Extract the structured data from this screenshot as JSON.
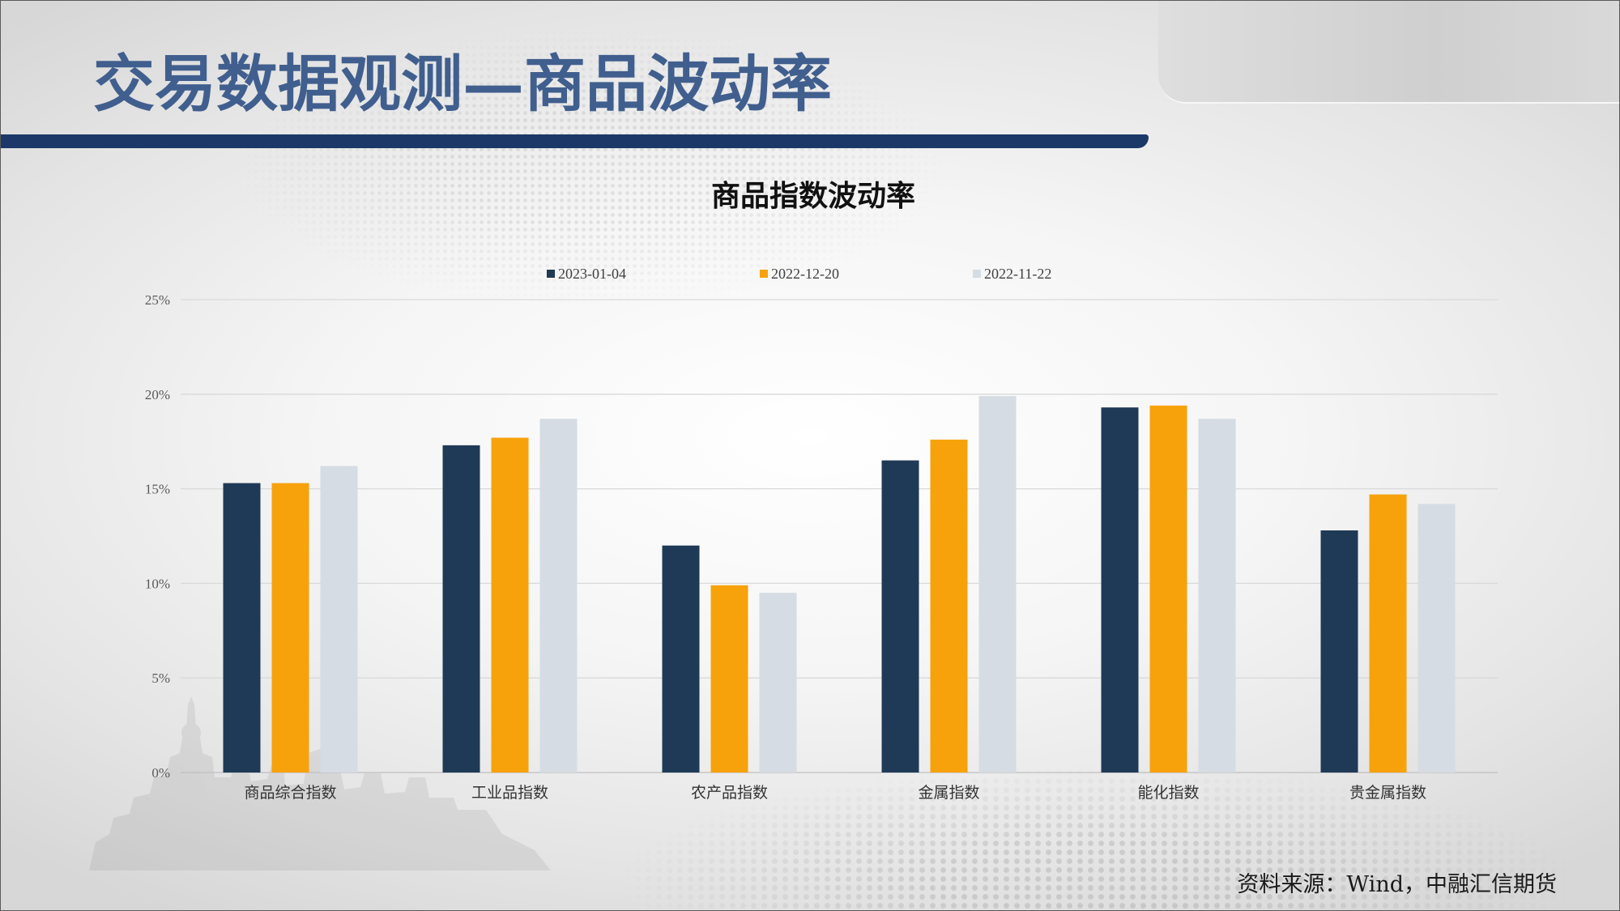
{
  "title": "交易数据观测—商品波动率",
  "source": "资料来源：Wind，中融汇信期货",
  "colors": {
    "title_text": "#405f8e",
    "title_band": "#1b3869"
  },
  "chart_data": {
    "type": "bar",
    "title": "商品指数波动率",
    "categories": [
      "商品综合指数",
      "工业品指数",
      "农产品指数",
      "金属指数",
      "能化指数",
      "贵金属指数"
    ],
    "series": [
      {
        "name": "2023-01-04",
        "color": "#1f3a57",
        "values": [
          15.3,
          17.3,
          12.0,
          16.5,
          19.3,
          12.8
        ]
      },
      {
        "name": "2022-12-20",
        "color": "#f7a20b",
        "values": [
          15.3,
          17.7,
          9.9,
          17.6,
          19.4,
          14.7
        ]
      },
      {
        "name": "2022-11-22",
        "color": "#d5dce4",
        "values": [
          16.2,
          18.7,
          9.5,
          19.9,
          18.7,
          14.2
        ]
      }
    ],
    "ylim": [
      0,
      25
    ],
    "yticks": [
      0,
      5,
      10,
      15,
      20,
      25
    ],
    "ytick_labels": [
      "0%",
      "5%",
      "10%",
      "15%",
      "20%",
      "25%"
    ],
    "grid": true,
    "legend": "top"
  }
}
